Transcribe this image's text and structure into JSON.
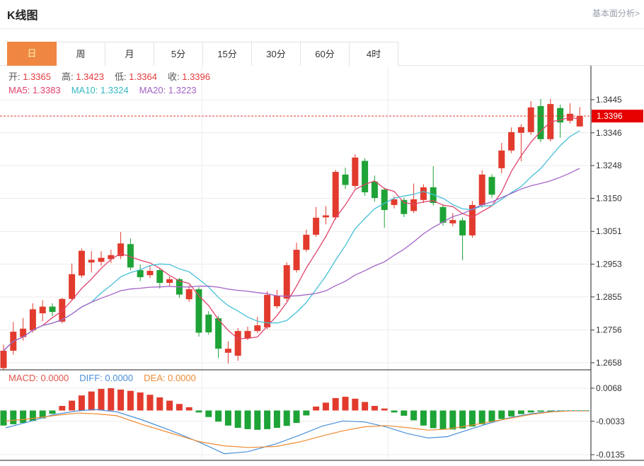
{
  "header": {
    "title": "K线图",
    "link_label": "基本面分析>"
  },
  "tabs": {
    "items": [
      "日",
      "周",
      "月",
      "5分",
      "15分",
      "30分",
      "60分",
      "4时"
    ],
    "active_index": 0
  },
  "legend": {
    "ohlc": [
      {
        "label": "开:",
        "value": "1.3365"
      },
      {
        "label": "高:",
        "value": "1.3423"
      },
      {
        "label": "低:",
        "value": "1.3364"
      },
      {
        "label": "收:",
        "value": "1.3396"
      }
    ],
    "ma": [
      {
        "label": "MA5:",
        "value": "1.3383",
        "color": "#e0436b"
      },
      {
        "label": "MA10:",
        "value": "1.3324",
        "color": "#36b8c4"
      },
      {
        "label": "MA20:",
        "value": "1.3223",
        "color": "#a263c6"
      }
    ],
    "macd": [
      {
        "label": "MACD:",
        "value": "0.0000",
        "color": "#e0544a"
      },
      {
        "label": "DIFF:",
        "value": "0.0000",
        "color": "#4a90d9"
      },
      {
        "label": "DEA:",
        "value": "0.0000",
        "color": "#ef8b32"
      }
    ]
  },
  "colors": {
    "up": "#e23b2e",
    "down": "#1ea336",
    "grid": "#ececec",
    "axis_line": "#222222",
    "axis_text": "#333333",
    "ma5": "#e0436b",
    "ma10": "#45c0d8",
    "ma20": "#a263c6",
    "diff": "#4a90d9",
    "dea": "#ef8b32",
    "zero_dash": "#45c8dc",
    "last_price_line": "#e03b2e",
    "last_price_bg": "#e60000",
    "last_price_text": "#ffffff",
    "tab_active_bg": "#ef8743",
    "tab_active_text": "#fdf3b0"
  },
  "chart_data": {
    "type": "candlestick+macd",
    "title": "K线图",
    "price_ticks": [
      "1.3445",
      "1.3346",
      "1.3248",
      "1.3150",
      "1.3051",
      "1.2953",
      "1.2855",
      "1.2756",
      "1.2658"
    ],
    "macd_ticks": [
      "0.0068",
      "-0.0033",
      "-0.0135"
    ],
    "last_price": "1.3396",
    "ohlc": {
      "open": 1.3365,
      "high": 1.3423,
      "low": 1.3364,
      "close": 1.3396
    },
    "ma_values": {
      "MA5": 1.3383,
      "MA10": 1.3324,
      "MA20": 1.3223
    },
    "macd_values": {
      "MACD": 0.0,
      "DIFF": 0.0,
      "DEA": 0.0
    },
    "ma_periods": [
      5,
      10,
      20
    ],
    "candles": [
      [
        1.2642,
        1.2712,
        1.2638,
        1.2694
      ],
      [
        1.2694,
        1.278,
        1.2682,
        1.2751
      ],
      [
        1.2735,
        1.2792,
        1.2724,
        1.276
      ],
      [
        1.2755,
        1.2836,
        1.2748,
        1.2818
      ],
      [
        1.2806,
        1.2845,
        1.2782,
        1.2826
      ],
      [
        1.2826,
        1.2836,
        1.2798,
        1.281
      ],
      [
        1.2781,
        1.2852,
        1.2776,
        1.2849
      ],
      [
        1.2849,
        1.2955,
        1.2843,
        1.2923
      ],
      [
        1.2919,
        1.3,
        1.2912,
        1.2993
      ],
      [
        1.2958,
        1.2992,
        1.2928,
        1.2966
      ],
      [
        1.296,
        1.2992,
        1.2948,
        1.2972
      ],
      [
        1.2968,
        1.2996,
        1.2956,
        1.298
      ],
      [
        1.2977,
        1.3049,
        1.2968,
        1.3015
      ],
      [
        1.3013,
        1.303,
        1.2935,
        1.2943
      ],
      [
        1.2935,
        1.2952,
        1.2902,
        1.2914
      ],
      [
        1.292,
        1.295,
        1.2912,
        1.2933
      ],
      [
        1.2935,
        1.2942,
        1.288,
        1.2897
      ],
      [
        1.2897,
        1.2916,
        1.2888,
        1.2908
      ],
      [
        1.2908,
        1.2912,
        1.2852,
        1.2862
      ],
      [
        1.2848,
        1.289,
        1.284,
        1.2878
      ],
      [
        1.2878,
        1.2884,
        1.2736,
        1.2748
      ],
      [
        1.2802,
        1.2812,
        1.2742,
        1.2749
      ],
      [
        1.2791,
        1.2798,
        1.2672,
        1.27
      ],
      [
        1.2688,
        1.2722,
        1.2656,
        1.27
      ],
      [
        1.2679,
        1.2762,
        1.2664,
        1.2753
      ],
      [
        1.2732,
        1.2766,
        1.2726,
        1.2753
      ],
      [
        1.2753,
        1.2796,
        1.2746,
        1.277
      ],
      [
        1.2764,
        1.2872,
        1.2758,
        1.2861
      ],
      [
        1.2827,
        1.2876,
        1.282,
        1.2859
      ],
      [
        1.285,
        1.2958,
        1.2843,
        1.295
      ],
      [
        1.2935,
        1.3017,
        1.2928,
        1.2996
      ],
      [
        1.2996,
        1.3056,
        1.299,
        1.3041
      ],
      [
        1.3041,
        1.3124,
        1.3035,
        1.3092
      ],
      [
        1.3093,
        1.3127,
        1.3072,
        1.3099
      ],
      [
        1.3093,
        1.3235,
        1.3086,
        1.3229
      ],
      [
        1.3221,
        1.3242,
        1.3178,
        1.319
      ],
      [
        1.3187,
        1.3282,
        1.318,
        1.3272
      ],
      [
        1.3262,
        1.327,
        1.3158,
        1.3168
      ],
      [
        1.32,
        1.3218,
        1.314,
        1.3151
      ],
      [
        1.3176,
        1.3182,
        1.3062,
        1.3115
      ],
      [
        1.313,
        1.3156,
        1.312,
        1.3147
      ],
      [
        1.3145,
        1.3152,
        1.3094,
        1.3103
      ],
      [
        1.3112,
        1.3194,
        1.3106,
        1.3147
      ],
      [
        1.3145,
        1.3192,
        1.3136,
        1.3183
      ],
      [
        1.3183,
        1.3246,
        1.3128,
        1.3136
      ],
      [
        1.3124,
        1.3132,
        1.3068,
        1.3077
      ],
      [
        1.3075,
        1.3106,
        1.3066,
        1.3085
      ],
      [
        1.3084,
        1.3092,
        1.2965,
        1.3039
      ],
      [
        1.3039,
        1.3142,
        1.3032,
        1.313
      ],
      [
        1.313,
        1.3234,
        1.3122,
        1.3221
      ],
      [
        1.3214,
        1.3222,
        1.3152,
        1.3161
      ],
      [
        1.324,
        1.3316,
        1.3225,
        1.3293
      ],
      [
        1.3293,
        1.3362,
        1.3285,
        1.3348
      ],
      [
        1.3346,
        1.3372,
        1.3261,
        1.3363
      ],
      [
        1.3348,
        1.3441,
        1.334,
        1.3422
      ],
      [
        1.3426,
        1.3447,
        1.3318,
        1.3327
      ],
      [
        1.3327,
        1.3447,
        1.332,
        1.3432
      ],
      [
        1.342,
        1.343,
        1.3331,
        1.3377
      ],
      [
        1.3382,
        1.3434,
        1.3374,
        1.3403
      ],
      [
        1.3365,
        1.3423,
        1.3364,
        1.3396
      ]
    ],
    "macd_hist": [
      -0.0046,
      -0.0042,
      -0.0038,
      -0.0032,
      -0.0024,
      -0.001,
      0.0014,
      0.003,
      0.0046,
      0.0058,
      0.0066,
      0.0068,
      0.0064,
      0.006,
      0.0055,
      0.0048,
      0.004,
      0.003,
      0.002,
      0.001,
      -0.0006,
      -0.002,
      -0.0034,
      -0.0046,
      -0.0053,
      -0.0057,
      -0.0059,
      -0.0057,
      -0.0053,
      -0.0047,
      -0.0038,
      -0.0015,
      0.0012,
      0.0024,
      0.0038,
      0.0042,
      0.0036,
      0.0026,
      0.0014,
      0.0006,
      -0.0006,
      -0.0016,
      -0.003,
      -0.0046,
      -0.0054,
      -0.0058,
      -0.0058,
      -0.0055,
      -0.0049,
      -0.0042,
      -0.0034,
      -0.0026,
      -0.0018,
      -0.0011,
      -0.0006,
      -0.0004,
      -0.0003,
      -0.0002,
      0.0,
      0.0
    ],
    "diff_line": [
      [
        8,
        -0.0053
      ],
      [
        40,
        -0.0035
      ],
      [
        75,
        -0.0013
      ],
      [
        110,
        -0.0001
      ],
      [
        135,
        0.0003
      ],
      [
        165,
        -0.0004
      ],
      [
        200,
        -0.0028
      ],
      [
        240,
        -0.006
      ],
      [
        283,
        -0.0098
      ],
      [
        317,
        -0.0132
      ],
      [
        350,
        -0.0126
      ],
      [
        390,
        -0.0102
      ],
      [
        424,
        -0.0075
      ],
      [
        455,
        -0.0048
      ],
      [
        485,
        -0.0032
      ],
      [
        515,
        -0.0035
      ],
      [
        545,
        -0.005
      ],
      [
        575,
        -0.007
      ],
      [
        605,
        -0.0084
      ],
      [
        632,
        -0.008
      ],
      [
        660,
        -0.006
      ],
      [
        690,
        -0.004
      ],
      [
        720,
        -0.0022
      ],
      [
        750,
        -0.001
      ],
      [
        780,
        -0.0003
      ],
      [
        808,
        -0.0001
      ],
      [
        833,
        -0.0001
      ]
    ],
    "dea_line": [
      [
        8,
        -0.0032
      ],
      [
        40,
        -0.0026
      ],
      [
        75,
        -0.0016
      ],
      [
        110,
        -0.0008
      ],
      [
        135,
        -0.001
      ],
      [
        165,
        -0.0016
      ],
      [
        200,
        -0.0042
      ],
      [
        240,
        -0.0068
      ],
      [
        283,
        -0.0096
      ],
      [
        317,
        -0.0108
      ],
      [
        350,
        -0.0113
      ],
      [
        390,
        -0.011
      ],
      [
        424,
        -0.0096
      ],
      [
        455,
        -0.0078
      ],
      [
        485,
        -0.0062
      ],
      [
        515,
        -0.005
      ],
      [
        545,
        -0.0046
      ],
      [
        575,
        -0.0052
      ],
      [
        605,
        -0.006
      ],
      [
        632,
        -0.0057
      ],
      [
        660,
        -0.0047
      ],
      [
        690,
        -0.0036
      ],
      [
        720,
        -0.0024
      ],
      [
        750,
        -0.0012
      ],
      [
        780,
        -0.0004
      ],
      [
        808,
        -0.0001
      ],
      [
        833,
        -0.0001
      ]
    ]
  }
}
